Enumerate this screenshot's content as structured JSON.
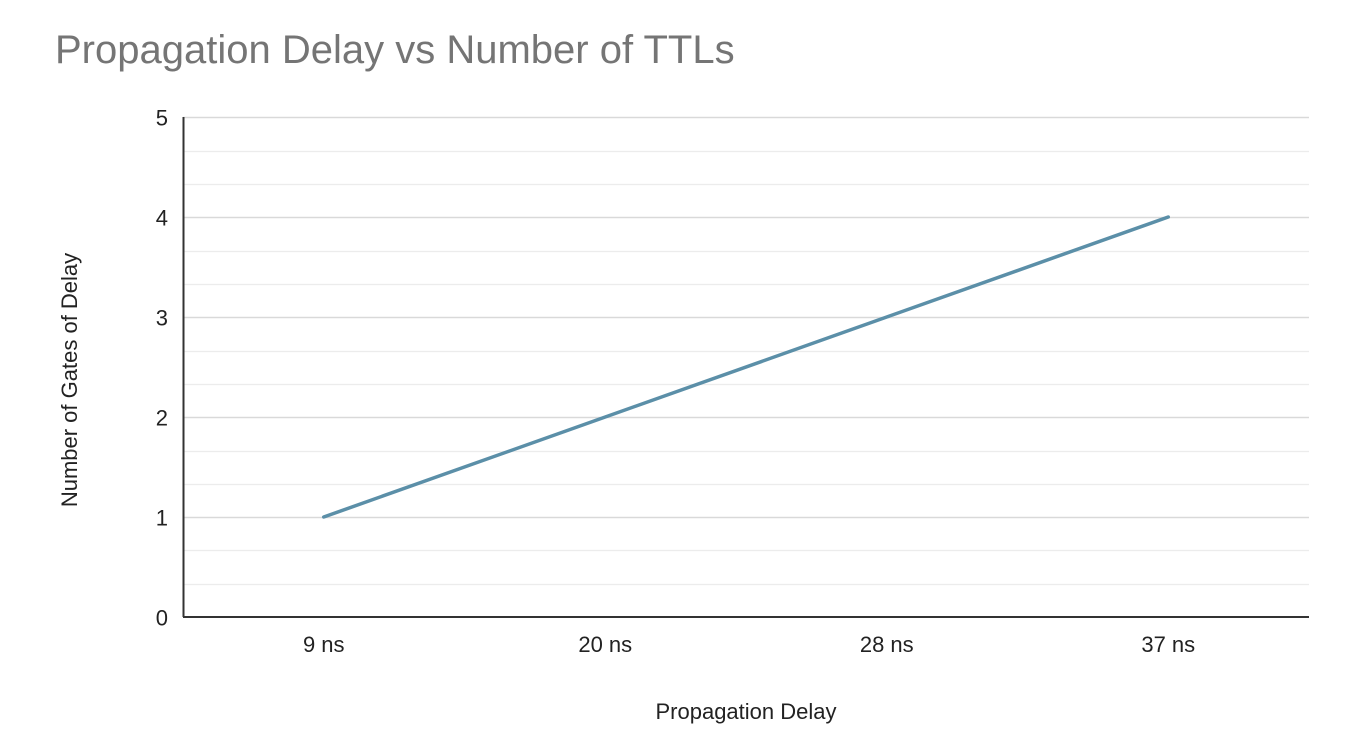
{
  "chart_data": {
    "type": "line",
    "title": "Propagation Delay vs Number of TTLs",
    "xlabel": "Propagation Delay",
    "ylabel": "Number of Gates of Delay",
    "categories": [
      "9 ns",
      "20 ns",
      "28 ns",
      "37 ns"
    ],
    "series": [
      {
        "values": [
          1,
          2,
          3,
          4
        ],
        "color": "#5b8fa8"
      }
    ],
    "ylim": [
      0,
      5
    ],
    "y_ticks": [
      0,
      1,
      2,
      3,
      4,
      5
    ],
    "y_minor_step": 0.333,
    "grid": true,
    "legend": "none",
    "colors": {
      "title": "#757575",
      "text": "#222222",
      "grid": "#d9d9d9",
      "axis": "#333333"
    }
  }
}
